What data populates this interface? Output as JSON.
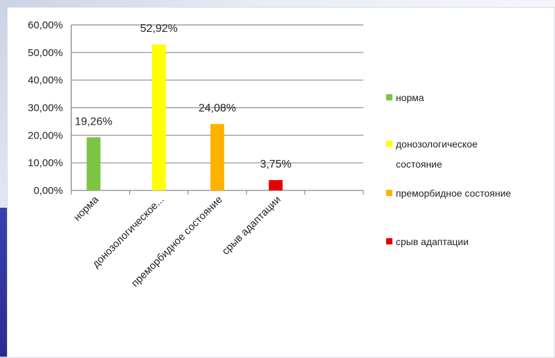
{
  "chart_data": {
    "type": "bar",
    "categories": [
      "норма",
      "донозологическое состояние",
      "преморбидное состояние",
      "срыв адаптации"
    ],
    "category_tick_labels": [
      "норма",
      "донозологическое...",
      "преморбидное состояние",
      "срыв адаптации"
    ],
    "values": [
      19.26,
      52.92,
      24.08,
      3.75
    ],
    "data_labels": [
      "19,26%",
      "52,92%",
      "24,08%",
      "3,75%"
    ],
    "colors": [
      "#7cc544",
      "#ffff00",
      "#ffb300",
      "#e60000"
    ],
    "y_ticks": [
      "0,00%",
      "10,00%",
      "20,00%",
      "30,00%",
      "40,00%",
      "50,00%",
      "60,00%"
    ],
    "ylim": [
      0,
      60
    ],
    "grid": true,
    "legend": {
      "placement": "right",
      "entries": [
        {
          "label": "норма",
          "color": "#7cc544"
        },
        {
          "label": "донозологическое состояние",
          "color": "#ffff00"
        },
        {
          "label": "преморбидное состояние",
          "color": "#ffb300"
        },
        {
          "label": "срыв адаптации",
          "color": "#e60000"
        }
      ]
    }
  }
}
